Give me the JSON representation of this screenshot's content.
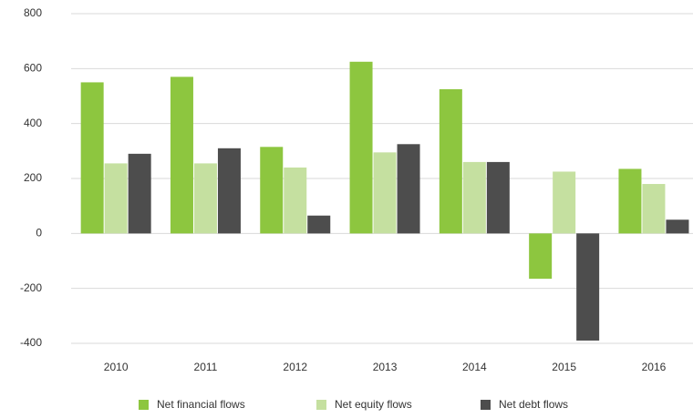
{
  "chart_data": {
    "type": "bar",
    "categories": [
      "2010",
      "2011",
      "2012",
      "2013",
      "2014",
      "2015",
      "2016"
    ],
    "series": [
      {
        "name": "Net financial flows",
        "color": "#8dc63f",
        "values": [
          550,
          570,
          315,
          625,
          525,
          -165,
          235
        ]
      },
      {
        "name": "Net equity  flows",
        "color": "#c5e0a0",
        "values": [
          255,
          255,
          240,
          295,
          260,
          225,
          180
        ]
      },
      {
        "name": "Net debt  flows",
        "color": "#4d4d4d",
        "values": [
          290,
          310,
          65,
          325,
          260,
          -390,
          50
        ]
      }
    ],
    "ylim": [
      -400,
      800
    ],
    "yticks": [
      -400,
      -200,
      0,
      200,
      400,
      600,
      800
    ],
    "grid": true,
    "legend": "bottom"
  }
}
